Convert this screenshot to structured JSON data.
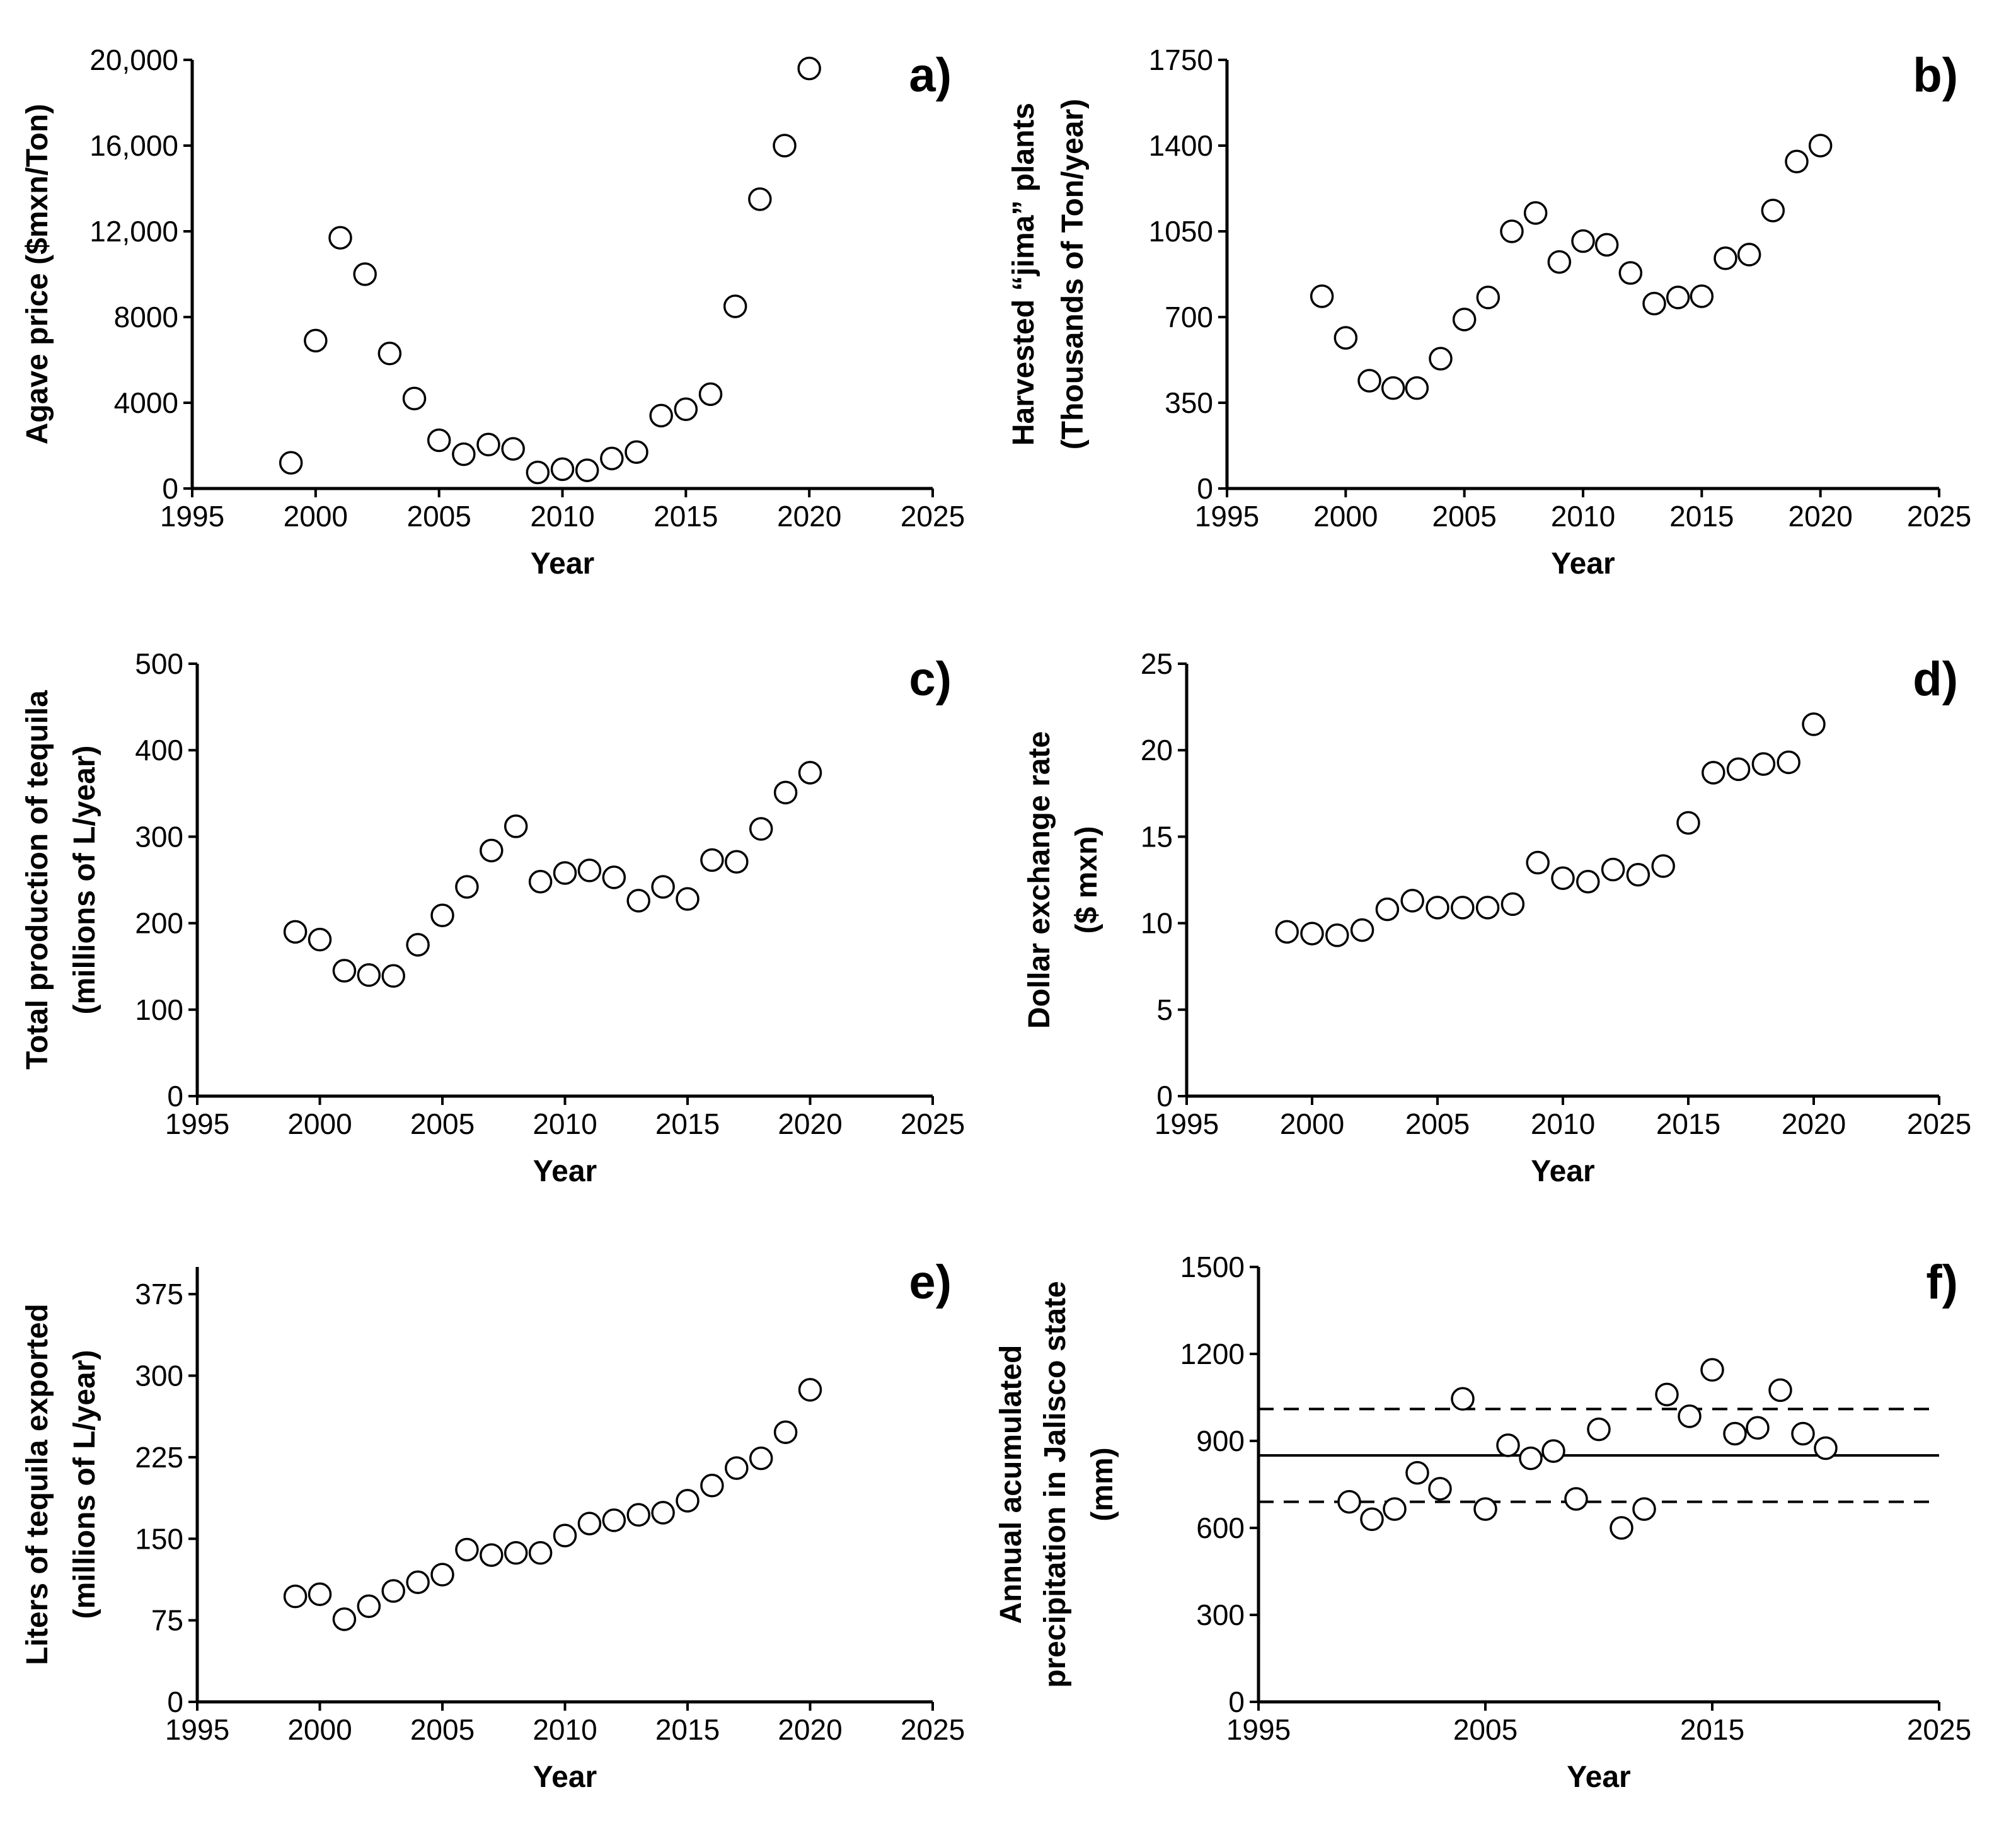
{
  "chart_data": [
    {
      "type": "scatter",
      "panel_label": "a)",
      "xlabel": "Year",
      "ylabel": [
        "Agave price ($mxn/Ton)"
      ],
      "xlim": [
        1995,
        2025
      ],
      "ylim": [
        0,
        20000
      ],
      "xticks": [
        "1995",
        "2000",
        "2005",
        "2010",
        "2015",
        "2020",
        "2025"
      ],
      "yticks": [
        "0",
        "4000",
        "8000",
        "12,000",
        "16,000",
        "20,000"
      ],
      "series": [
        {
          "name": "Agave price",
          "x": [
            1999,
            2000,
            2001,
            2002,
            2003,
            2004,
            2005,
            2006,
            2007,
            2008,
            2009,
            2010,
            2011,
            2012,
            2013,
            2014,
            2015,
            2016,
            2017,
            2018,
            2019,
            2020
          ],
          "y": [
            1200,
            6900,
            11700,
            10000,
            6300,
            4200,
            2250,
            1600,
            2050,
            1850,
            750,
            900,
            850,
            1400,
            1700,
            3400,
            3700,
            4400,
            8500,
            13500,
            16000,
            19600
          ]
        }
      ]
    },
    {
      "type": "scatter",
      "panel_label": "b)",
      "xlabel": "Year",
      "ylabel": [
        "Harvested “jima” plants",
        "(Thousands of Ton/year)"
      ],
      "xlim": [
        1995,
        2025
      ],
      "ylim": [
        0,
        1750
      ],
      "xticks": [
        "1995",
        "2000",
        "2005",
        "2010",
        "2015",
        "2020",
        "2025"
      ],
      "yticks": [
        "0",
        "350",
        "700",
        "1050",
        "1400",
        "1750"
      ],
      "series": [
        {
          "name": "Harvested jima plants",
          "x": [
            1999,
            2000,
            2001,
            2002,
            2003,
            2004,
            2005,
            2006,
            2007,
            2008,
            2009,
            2010,
            2011,
            2012,
            2013,
            2014,
            2015,
            2016,
            2017,
            2018,
            2019,
            2020
          ],
          "y": [
            785,
            615,
            440,
            410,
            410,
            530,
            690,
            780,
            1050,
            1125,
            925,
            1010,
            995,
            880,
            755,
            780,
            785,
            940,
            955,
            1135,
            1335,
            1400
          ]
        }
      ]
    },
    {
      "type": "scatter",
      "panel_label": "c)",
      "xlabel": "Year",
      "ylabel": [
        "Total production of tequila",
        "(millions of L/year)"
      ],
      "xlim": [
        1995,
        2025
      ],
      "ylim": [
        0,
        500
      ],
      "xticks": [
        "1995",
        "2000",
        "2005",
        "2010",
        "2015",
        "2020",
        "2025"
      ],
      "yticks": [
        "0",
        "100",
        "200",
        "300",
        "400",
        "500"
      ],
      "series": [
        {
          "name": "Total production of tequila",
          "x": [
            1999,
            2000,
            2001,
            2002,
            2003,
            2004,
            2005,
            2006,
            2007,
            2008,
            2009,
            2010,
            2011,
            2012,
            2013,
            2014,
            2015,
            2016,
            2017,
            2018,
            2019,
            2020
          ],
          "y": [
            190,
            181,
            145,
            140,
            139,
            175,
            209,
            242,
            284,
            312,
            248,
            258,
            261,
            253,
            226,
            242,
            228,
            273,
            271,
            309,
            351,
            374
          ]
        }
      ]
    },
    {
      "type": "scatter",
      "panel_label": "d)",
      "xlabel": "Year",
      "ylabel": [
        "Dollar exchange rate",
        "($ mxn)"
      ],
      "xlim": [
        1995,
        2025
      ],
      "ylim": [
        0,
        25
      ],
      "xticks": [
        "1995",
        "2000",
        "2005",
        "2010",
        "2015",
        "2020",
        "2025"
      ],
      "yticks": [
        "0",
        "5",
        "10",
        "15",
        "20",
        "25"
      ],
      "series": [
        {
          "name": "Dollar exchange rate",
          "x": [
            1999,
            2000,
            2001,
            2002,
            2003,
            2004,
            2005,
            2006,
            2007,
            2008,
            2009,
            2010,
            2011,
            2012,
            2013,
            2014,
            2015,
            2016,
            2017,
            2018,
            2019,
            2020
          ],
          "y": [
            9.5,
            9.4,
            9.3,
            9.6,
            10.8,
            11.3,
            10.9,
            10.9,
            10.9,
            11.1,
            13.5,
            12.6,
            12.4,
            13.1,
            12.8,
            13.3,
            15.8,
            18.7,
            18.9,
            19.2,
            19.3,
            21.5
          ]
        }
      ]
    },
    {
      "type": "scatter",
      "panel_label": "e)",
      "xlabel": "Year",
      "ylabel": [
        "Liters of tequila exported",
        "(millions of L/year)"
      ],
      "xlim": [
        1995,
        2025
      ],
      "ylim": [
        0,
        400
      ],
      "xticks": [
        "1995",
        "2000",
        "2005",
        "2010",
        "2015",
        "2020",
        "2025"
      ],
      "yticks": [
        "0",
        "75",
        "150",
        "225",
        "300",
        "375"
      ],
      "series": [
        {
          "name": "Liters of tequila exported",
          "x": [
            1999,
            2000,
            2001,
            2002,
            2003,
            2004,
            2005,
            2006,
            2007,
            2008,
            2009,
            2010,
            2011,
            2012,
            2013,
            2014,
            2015,
            2016,
            2017,
            2018,
            2019,
            2020
          ],
          "y": [
            97,
            99,
            76,
            88,
            102,
            110,
            117,
            140,
            135,
            137,
            137,
            153,
            164,
            167,
            172,
            174,
            185,
            199,
            215,
            224,
            248,
            287
          ]
        }
      ]
    },
    {
      "type": "scatter",
      "panel_label": "f)",
      "xlabel": "Year",
      "ylabel": [
        "Annual acumulated",
        "precipitation in Jalisco state",
        "(mm)"
      ],
      "xlim": [
        1995,
        2025
      ],
      "ylim": [
        0,
        1500
      ],
      "xticks": [
        "1995",
        "2005",
        "2015",
        "2025"
      ],
      "yticks": [
        "0",
        "300",
        "600",
        "900",
        "1200",
        "1500"
      ],
      "reference_lines": [
        {
          "style": "solid",
          "y": 850
        },
        {
          "style": "dashed",
          "y": 1010
        },
        {
          "style": "dashed",
          "y": 690
        }
      ],
      "series": [
        {
          "name": "Annual accumulated precipitation",
          "x": [
            1999,
            2000,
            2001,
            2002,
            2003,
            2004,
            2005,
            2006,
            2007,
            2008,
            2009,
            2010,
            2011,
            2012,
            2013,
            2014,
            2015,
            2016,
            2017,
            2018,
            2019,
            2020
          ],
          "y": [
            690,
            630,
            665,
            790,
            735,
            1045,
            665,
            885,
            840,
            865,
            700,
            940,
            600,
            665,
            1060,
            985,
            1145,
            925,
            945,
            1075,
            925,
            875
          ]
        }
      ]
    }
  ]
}
